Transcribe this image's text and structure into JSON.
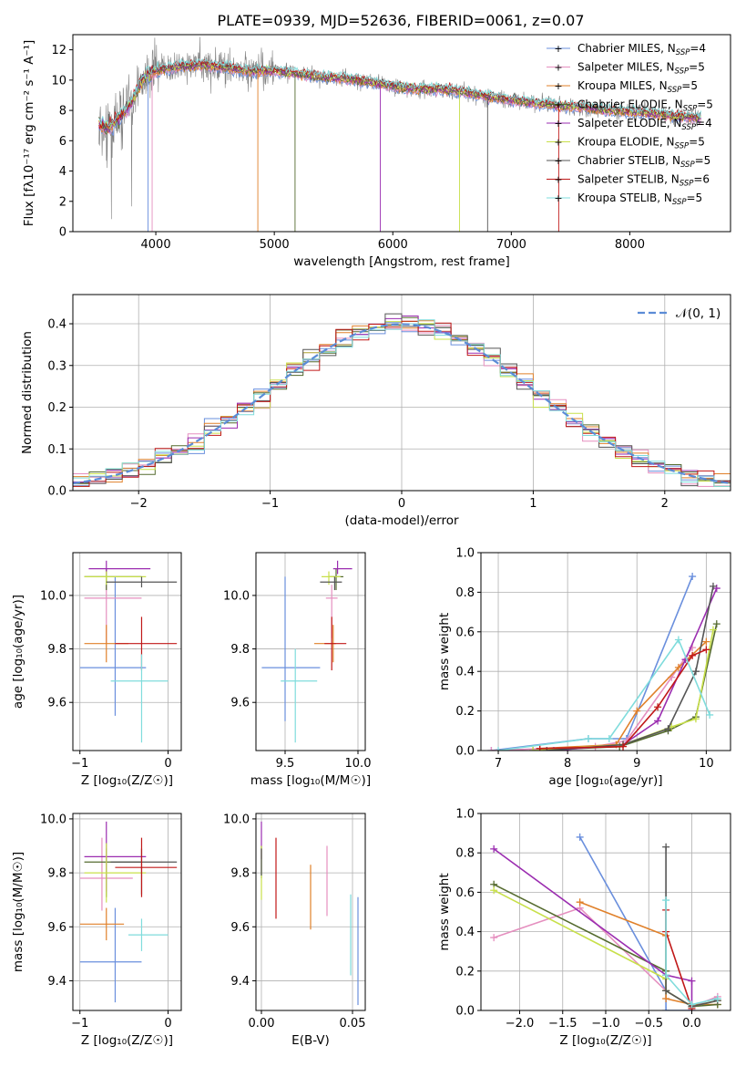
{
  "title": "PLATE=0939, MJD=52636, FIBERID=0061, z=0.07",
  "models": [
    {
      "name": "Chabrier MILES",
      "nssp": "4",
      "color": "#6a8fdd"
    },
    {
      "name": "Salpeter MILES",
      "nssp": "5",
      "color": "#e58fbf"
    },
    {
      "name": "Kroupa MILES",
      "nssp": "5",
      "color": "#e0802a"
    },
    {
      "name": "Chabrier ELODIE",
      "nssp": "5",
      "color": "#556b2f"
    },
    {
      "name": "Salpeter ELODIE",
      "nssp": "4",
      "color": "#9b2db0"
    },
    {
      "name": "Kroupa ELODIE",
      "nssp": "5",
      "color": "#c8e04a"
    },
    {
      "name": "Chabrier STELIB",
      "nssp": "5",
      "color": "#555555"
    },
    {
      "name": "Salpeter STELIB",
      "nssp": "6",
      "color": "#c01818"
    },
    {
      "name": "Kroupa STELIB",
      "nssp": "5",
      "color": "#7fdcdc"
    }
  ],
  "chart_data": [
    {
      "type": "line",
      "id": "spectrum",
      "xlabel": "wavelength [Angstrom, rest frame]",
      "ylabel": "Flux [fλ10⁻¹⁷ erg cm⁻² s⁻¹ A⁻¹]",
      "xlim": [
        3300,
        8850
      ],
      "ylim": [
        0,
        13
      ],
      "xticks": [
        4000,
        5000,
        6000,
        7000,
        8000
      ],
      "yticks": [
        0,
        2,
        4,
        6,
        8,
        10,
        12
      ],
      "data_color": "#808080",
      "continuum": {
        "x": [
          3500,
          3600,
          3700,
          3800,
          3900,
          4000,
          4200,
          4400,
          4600,
          4800,
          5000,
          5200,
          5400,
          5600,
          5800,
          6000,
          6200,
          6400,
          6600,
          6800,
          7000,
          7200,
          7400,
          7600,
          7800,
          8000,
          8200,
          8400,
          8600
        ],
        "y": [
          7.2,
          6.8,
          7.6,
          8.6,
          10.2,
          10.6,
          10.9,
          11.0,
          10.8,
          10.6,
          10.6,
          10.4,
          10.2,
          10.1,
          9.9,
          9.6,
          9.4,
          9.4,
          9.2,
          8.9,
          8.7,
          8.5,
          8.3,
          8.2,
          8.0,
          7.9,
          7.8,
          7.6,
          7.5
        ]
      },
      "absorption_lines": [
        3934,
        3969,
        4861,
        5175,
        5894,
        6563,
        6800,
        7400
      ],
      "legend_position": "upper right"
    },
    {
      "type": "histogram",
      "id": "residuals",
      "xlabel": "(data-model)/error",
      "ylabel": "Normed distribution",
      "xlim": [
        -2.5,
        2.5
      ],
      "ylim": [
        0,
        0.47
      ],
      "xticks": [
        -2,
        -1,
        0,
        1,
        2
      ],
      "yticks": [
        0.0,
        0.1,
        0.2,
        0.3,
        0.4
      ],
      "reference_label": "𝒩(0, 1)",
      "reference_color": "#5b8cd6",
      "grid": true,
      "legend_position": "upper right"
    },
    {
      "type": "scatter",
      "id": "age-vs-Z",
      "xlabel": "Z [log₁₀(Z/Z☉)]",
      "ylabel": "age  [log₁₀(age/yr)]",
      "xlim": [
        -1.08,
        0.15
      ],
      "ylim": [
        9.42,
        10.16
      ],
      "xticks": [
        -1,
        0
      ],
      "yticks": [
        9.6,
        9.8,
        10.0
      ],
      "grid": true,
      "points": [
        {
          "x": -0.6,
          "y": 9.73,
          "xerr": [
            0.4,
            0.35
          ],
          "yerr": [
            0.18,
            0.34
          ]
        },
        {
          "x": -0.7,
          "y": 9.99,
          "xerr": [
            0.25,
            0.4
          ],
          "yerr": [
            0.17,
            0.05
          ]
        },
        {
          "x": -0.7,
          "y": 9.82,
          "xerr": [
            0.25,
            0.25
          ],
          "yerr": [
            0.07,
            0.07
          ]
        },
        {
          "x": -0.7,
          "y": 10.07,
          "xerr": [
            0.25,
            0.4
          ],
          "yerr": [
            0.05,
            0.03
          ]
        },
        {
          "x": -0.7,
          "y": 10.1,
          "xerr": [
            0.2,
            0.5
          ],
          "yerr": [
            0.02,
            0.03
          ]
        },
        {
          "x": -0.7,
          "y": 10.07,
          "xerr": [
            0.25,
            0.45
          ],
          "yerr": [
            0.03,
            0.02
          ]
        },
        {
          "x": -0.3,
          "y": 10.05,
          "xerr": [
            0.4,
            0.4
          ],
          "yerr": [
            0.02,
            0.02
          ]
        },
        {
          "x": -0.3,
          "y": 9.82,
          "xerr": [
            0.3,
            0.4
          ],
          "yerr": [
            0.1,
            0.1
          ]
        },
        {
          "x": -0.3,
          "y": 9.68,
          "xerr": [
            0.35,
            0.3
          ],
          "yerr": [
            0.23,
            0.1
          ]
        }
      ]
    },
    {
      "type": "scatter",
      "id": "age-vs-mass",
      "xlabel": "mass [log₁₀(M/M☉)]",
      "ylabel": "",
      "xlim": [
        9.3,
        10.05
      ],
      "ylim": [
        9.42,
        10.16
      ],
      "xticks": [
        9.5,
        10.0
      ],
      "yticks": [
        9.6,
        9.8,
        10.0
      ],
      "grid": true,
      "points": [
        {
          "x": 9.5,
          "y": 9.73,
          "xerr": [
            0.16,
            0.24
          ],
          "yerr": [
            0.2,
            0.34
          ]
        },
        {
          "x": 9.82,
          "y": 9.99,
          "xerr": [
            0.04,
            0.04
          ],
          "yerr": [
            0.15,
            0.05
          ]
        },
        {
          "x": 9.83,
          "y": 9.82,
          "xerr": [
            0.13,
            0.02
          ],
          "yerr": [
            0.07,
            0.07
          ]
        },
        {
          "x": 9.85,
          "y": 10.07,
          "xerr": [
            0.05,
            0.05
          ],
          "yerr": [
            0.05,
            0.03
          ]
        },
        {
          "x": 9.86,
          "y": 10.1,
          "xerr": [
            0.03,
            0.1
          ],
          "yerr": [
            0.02,
            0.03
          ]
        },
        {
          "x": 9.8,
          "y": 10.07,
          "xerr": [
            0.05,
            0.08
          ],
          "yerr": [
            0.03,
            0.02
          ]
        },
        {
          "x": 9.84,
          "y": 10.05,
          "xerr": [
            0.1,
            0.05
          ],
          "yerr": [
            0.03,
            0.02
          ]
        },
        {
          "x": 9.82,
          "y": 9.82,
          "xerr": [
            0.05,
            0.1
          ],
          "yerr": [
            0.1,
            0.1
          ]
        },
        {
          "x": 9.57,
          "y": 9.68,
          "xerr": [
            0.1,
            0.15
          ],
          "yerr": [
            0.23,
            0.12
          ]
        }
      ]
    },
    {
      "type": "line",
      "id": "mass-weight-vs-age",
      "xlabel": "age  [log₁₀(age/yr)]",
      "ylabel": "mass weight",
      "xlim": [
        6.75,
        10.35
      ],
      "ylim": [
        0,
        1
      ],
      "xticks": [
        7,
        8,
        9,
        10
      ],
      "yticks": [
        0.0,
        0.2,
        0.4,
        0.6,
        0.8,
        1.0
      ],
      "grid": true,
      "series": [
        {
          "x": [
            6.9,
            8.3,
            8.85,
            9.8
          ],
          "y": [
            0.0,
            0.06,
            0.06,
            0.88
          ]
        },
        {
          "x": [
            6.9,
            8.4,
            8.85,
            9.5,
            9.8
          ],
          "y": [
            0.0,
            0.02,
            0.05,
            0.37,
            0.52
          ]
        },
        {
          "x": [
            7.6,
            8.7,
            9.0,
            9.6,
            10.0
          ],
          "y": [
            0.01,
            0.03,
            0.2,
            0.42,
            0.55
          ]
        },
        {
          "x": [
            7.5,
            8.75,
            9.45,
            9.85,
            10.15
          ],
          "y": [
            0.0,
            0.02,
            0.1,
            0.17,
            0.64
          ]
        },
        {
          "x": [
            7.8,
            8.8,
            9.3,
            9.7,
            10.15
          ],
          "y": [
            0.0,
            0.03,
            0.15,
            0.46,
            0.82
          ]
        },
        {
          "x": [
            7.5,
            8.8,
            9.5,
            9.85,
            10.1
          ],
          "y": [
            0.0,
            0.03,
            0.12,
            0.16,
            0.61
          ]
        },
        {
          "x": [
            7.7,
            8.8,
            9.45,
            9.85,
            10.1
          ],
          "y": [
            0.0,
            0.03,
            0.11,
            0.4,
            0.83
          ]
        },
        {
          "x": [
            7.6,
            8.8,
            9.3,
            9.8,
            10.0
          ],
          "y": [
            0.01,
            0.02,
            0.22,
            0.48,
            0.51
          ]
        },
        {
          "x": [
            7.0,
            8.3,
            8.6,
            9.6,
            10.05
          ],
          "y": [
            0.0,
            0.06,
            0.06,
            0.56,
            0.18
          ]
        }
      ]
    },
    {
      "type": "scatter",
      "id": "mass-vs-Z",
      "xlabel": "Z [log₁₀(Z/Z☉)]",
      "ylabel": "mass [log₁₀(M/M☉)]",
      "xlim": [
        -1.08,
        0.15
      ],
      "ylim": [
        9.29,
        10.02
      ],
      "xticks": [
        -1,
        0
      ],
      "yticks": [
        9.4,
        9.6,
        9.8,
        10.0
      ],
      "grid": true,
      "points": [
        {
          "x": -0.6,
          "y": 9.47,
          "xerr": [
            0.4,
            0.3
          ],
          "yerr": [
            0.15,
            0.2
          ]
        },
        {
          "x": -0.75,
          "y": 9.78,
          "xerr": [
            0.25,
            0.35
          ],
          "yerr": [
            0.12,
            0.15
          ]
        },
        {
          "x": -0.7,
          "y": 9.61,
          "xerr": [
            0.3,
            0.2
          ],
          "yerr": [
            0.06,
            0.06
          ]
        },
        {
          "x": -0.7,
          "y": 9.84,
          "xerr": [
            0.25,
            0.4
          ],
          "yerr": [
            0.13,
            0.05
          ]
        },
        {
          "x": -0.7,
          "y": 9.86,
          "xerr": [
            0.25,
            0.45
          ],
          "yerr": [
            0.13,
            0.13
          ]
        },
        {
          "x": -0.7,
          "y": 9.8,
          "xerr": [
            0.25,
            0.45
          ],
          "yerr": [
            0.11,
            0.11
          ]
        },
        {
          "x": -0.3,
          "y": 9.84,
          "xerr": [
            0.35,
            0.4
          ],
          "yerr": [
            0.12,
            0.05
          ]
        },
        {
          "x": -0.3,
          "y": 9.82,
          "xerr": [
            0.3,
            0.4
          ],
          "yerr": [
            0.11,
            0.11
          ]
        },
        {
          "x": -0.3,
          "y": 9.57,
          "xerr": [
            0.15,
            0.3
          ],
          "yerr": [
            0.06,
            0.06
          ]
        }
      ]
    },
    {
      "type": "scatter",
      "id": "mass-vs-EBV",
      "xlabel": "E(B-V)",
      "ylabel": "",
      "xlim": [
        -0.003,
        0.057
      ],
      "ylim": [
        9.29,
        10.02
      ],
      "xticks": [
        0.0,
        0.05
      ],
      "yticks": [
        9.4,
        9.6,
        9.8,
        10.0
      ],
      "grid": true,
      "points": [
        {
          "x": 0.053,
          "y": 9.51,
          "xerr": [
            0,
            0
          ],
          "yerr": [
            0.2,
            0.2
          ]
        },
        {
          "x": 0.036,
          "y": 9.77,
          "xerr": [
            0,
            0
          ],
          "yerr": [
            0.13,
            0.13
          ]
        },
        {
          "x": 0.027,
          "y": 9.71,
          "xerr": [
            0,
            0
          ],
          "yerr": [
            0.12,
            0.12
          ]
        },
        {
          "x": 0.0,
          "y": 9.84,
          "xerr": [
            0,
            0
          ],
          "yerr": [
            0.06,
            0.06
          ]
        },
        {
          "x": 0.0,
          "y": 9.92,
          "xerr": [
            0,
            0
          ],
          "yerr": [
            0.07,
            0.07
          ]
        },
        {
          "x": 0.0,
          "y": 9.8,
          "xerr": [
            0,
            0
          ],
          "yerr": [
            0.1,
            0.1
          ]
        },
        {
          "x": 0.0,
          "y": 9.84,
          "xerr": [
            0,
            0
          ],
          "yerr": [
            0.05,
            0.05
          ]
        },
        {
          "x": 0.008,
          "y": 9.78,
          "xerr": [
            0,
            0
          ],
          "yerr": [
            0.15,
            0.15
          ]
        },
        {
          "x": 0.049,
          "y": 9.57,
          "xerr": [
            0,
            0
          ],
          "yerr": [
            0.15,
            0.15
          ]
        }
      ]
    },
    {
      "type": "line",
      "id": "mass-weight-vs-Z",
      "xlabel": "Z [log₁₀(Z/Z☉)]",
      "ylabel": "mass weight",
      "xlim": [
        -2.45,
        0.45
      ],
      "ylim": [
        0,
        1
      ],
      "xticks": [
        -2.0,
        -1.5,
        -1.0,
        -0.5,
        0.0
      ],
      "yticks": [
        0.0,
        0.2,
        0.4,
        0.6,
        0.8,
        1.0
      ],
      "grid": true,
      "series": [
        {
          "x": [
            -1.3,
            -0.3,
            -0.3,
            0.0
          ],
          "y": [
            0.88,
            0.1,
            0.0,
            0.0
          ]
        },
        {
          "x": [
            -2.3,
            -1.3,
            -0.3,
            0.0,
            0.3
          ],
          "y": [
            0.37,
            0.52,
            0.1,
            0.02,
            0.07
          ]
        },
        {
          "x": [
            -1.3,
            -0.3,
            -0.3,
            0.0,
            0.3
          ],
          "y": [
            0.55,
            0.38,
            0.06,
            0.03,
            0.03
          ]
        },
        {
          "x": [
            -2.3,
            -0.3,
            -0.3,
            0.0,
            0.3
          ],
          "y": [
            0.64,
            0.2,
            0.1,
            0.02,
            0.03
          ]
        },
        {
          "x": [
            -2.3,
            -0.3,
            0.0,
            0.0
          ],
          "y": [
            0.82,
            0.18,
            0.15,
            0.0
          ]
        },
        {
          "x": [
            -2.3,
            -0.3,
            -0.3,
            0.0,
            0.3
          ],
          "y": [
            0.61,
            0.16,
            0.1,
            0.02,
            0.05
          ]
        },
        {
          "x": [
            -0.3,
            -0.3,
            0.0,
            0.3
          ],
          "y": [
            0.83,
            0.1,
            0.02,
            0.05
          ]
        },
        {
          "x": [
            -0.3,
            -0.3,
            0.0
          ],
          "y": [
            0.51,
            0.4,
            0.01
          ]
        },
        {
          "x": [
            -0.3,
            -0.3,
            0.0,
            0.3
          ],
          "y": [
            0.56,
            0.18,
            0.03,
            0.06
          ]
        }
      ]
    }
  ]
}
